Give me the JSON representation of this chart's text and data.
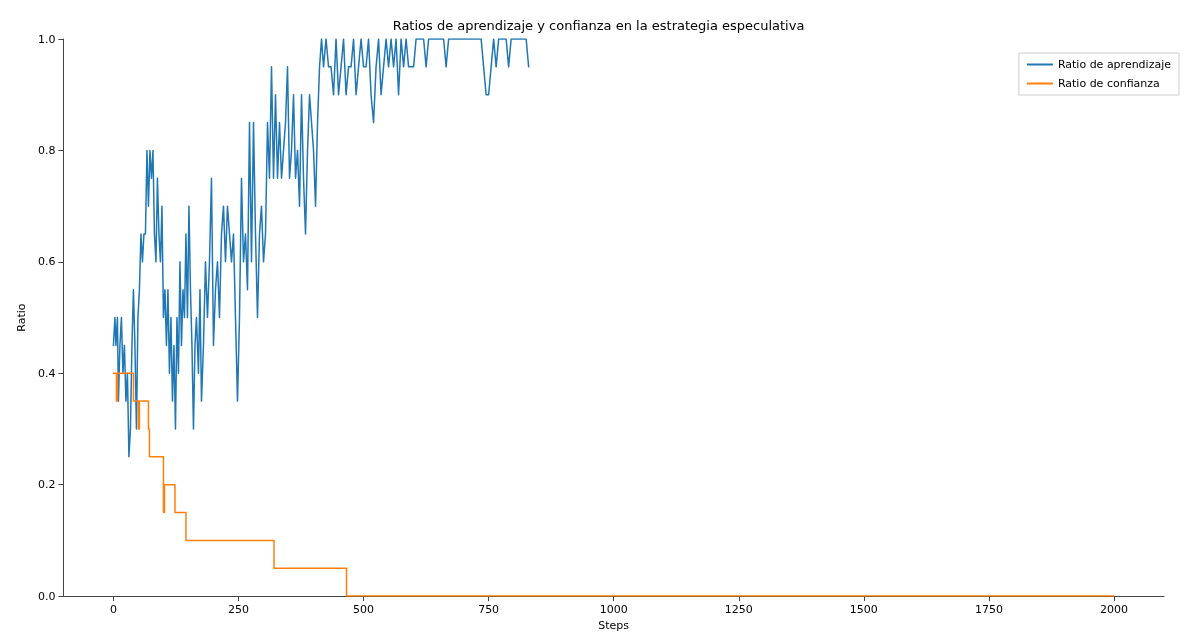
{
  "chart_data": {
    "type": "line",
    "title": "Ratios de aprendizaje y confianza en la estrategia especulativa",
    "xlabel": "Steps",
    "ylabel": "Ratio",
    "xlim": [
      -100,
      2100
    ],
    "xticks": [
      0,
      250,
      500,
      750,
      1000,
      1250,
      1500,
      1750,
      2000
    ],
    "ylim": [
      0,
      1
    ],
    "yticks": [
      {
        "value": 0,
        "label": "0.0"
      },
      {
        "value": 0.2,
        "label": "0.2"
      },
      {
        "value": 0.4,
        "label": "0.4"
      },
      {
        "value": 0.6,
        "label": "0.6"
      },
      {
        "value": 0.8,
        "label": "0.8"
      },
      {
        "value": 1,
        "label": "1.0"
      }
    ],
    "grid": false,
    "legend": "top right",
    "marker": "none",
    "line_style": "solid",
    "series": [
      {
        "name": "Ratio de aprendizaje",
        "color": "#1f77b4",
        "x": [
          0,
          3,
          5,
          8,
          10,
          13,
          16,
          19,
          22,
          25,
          28,
          31,
          34,
          37,
          40,
          43,
          46,
          49,
          52,
          55,
          58,
          61,
          64,
          67,
          70,
          73,
          76,
          79,
          82,
          85,
          88,
          91,
          94,
          97,
          100,
          103,
          106,
          109,
          112,
          115,
          118,
          121,
          124,
          127,
          130,
          133,
          136,
          139,
          142,
          145,
          148,
          151,
          154,
          157,
          160,
          163,
          166,
          170,
          173,
          176,
          180,
          184,
          188,
          192,
          196,
          200,
          204,
          208,
          212,
          216,
          220,
          224,
          228,
          232,
          236,
          240,
          244,
          248,
          252,
          256,
          260,
          264,
          268,
          272,
          276,
          280,
          284,
          288,
          292,
          296,
          300,
          304,
          308,
          312,
          316,
          320,
          324,
          328,
          332,
          336,
          340,
          344,
          348,
          352,
          356,
          360,
          364,
          368,
          372,
          376,
          380,
          384,
          388,
          392,
          396,
          400,
          404,
          408,
          412,
          416,
          420,
          425,
          430,
          435,
          440,
          445,
          450,
          455,
          460,
          465,
          470,
          475,
          480,
          485,
          490,
          495,
          500,
          505,
          510,
          515,
          520,
          525,
          530,
          535,
          540,
          545,
          550,
          555,
          560,
          565,
          570,
          575,
          580,
          585,
          590,
          600,
          605,
          620,
          625,
          630,
          660,
          665,
          670,
          735,
          740,
          745,
          750,
          755,
          760,
          765,
          770,
          785,
          790,
          795,
          825,
          830
        ],
        "values": [
          0.45,
          0.5,
          0.45,
          0.5,
          0.35,
          0.45,
          0.5,
          0.4,
          0.45,
          0.35,
          0.4,
          0.25,
          0.3,
          0.45,
          0.55,
          0.45,
          0.3,
          0.5,
          0.55,
          0.65,
          0.6,
          0.65,
          0.65,
          0.8,
          0.7,
          0.8,
          0.75,
          0.8,
          0.65,
          0.6,
          0.75,
          0.65,
          0.6,
          0.7,
          0.5,
          0.55,
          0.45,
          0.55,
          0.4,
          0.5,
          0.35,
          0.45,
          0.3,
          0.5,
          0.4,
          0.6,
          0.45,
          0.55,
          0.5,
          0.65,
          0.5,
          0.7,
          0.55,
          0.45,
          0.3,
          0.45,
          0.5,
          0.4,
          0.55,
          0.35,
          0.45,
          0.6,
          0.5,
          0.6,
          0.75,
          0.45,
          0.55,
          0.6,
          0.5,
          0.65,
          0.7,
          0.6,
          0.7,
          0.65,
          0.6,
          0.65,
          0.5,
          0.35,
          0.5,
          0.75,
          0.6,
          0.65,
          0.55,
          0.85,
          0.6,
          0.85,
          0.65,
          0.5,
          0.65,
          0.7,
          0.6,
          0.65,
          0.85,
          0.75,
          0.95,
          0.75,
          0.9,
          0.75,
          0.85,
          0.75,
          0.8,
          0.85,
          0.95,
          0.75,
          0.8,
          0.9,
          0.75,
          0.8,
          0.7,
          0.9,
          0.75,
          0.65,
          0.8,
          0.9,
          0.85,
          0.8,
          0.7,
          0.85,
          0.95,
          1,
          0.95,
          1,
          0.95,
          0.95,
          0.9,
          1,
          0.9,
          0.95,
          1,
          0.9,
          0.95,
          0.95,
          1,
          0.9,
          0.95,
          1,
          0.95,
          0.95,
          1,
          0.9,
          0.85,
          0.95,
          1,
          0.9,
          0.95,
          1,
          0.95,
          1,
          0.95,
          1,
          0.9,
          1,
          0.95,
          1,
          0.95,
          0.95,
          1,
          1,
          0.95,
          1,
          1,
          0.95,
          1,
          1,
          0.95,
          0.9,
          0.9,
          0.95,
          1,
          0.95,
          1,
          1,
          0.95,
          1,
          1,
          0.95
        ]
      },
      {
        "name": "Ratio de confianza",
        "color": "#ff7f0e",
        "type": "step",
        "x": [
          0,
          6,
          8,
          40,
          50,
          52,
          70,
          72,
          100,
          102,
          123,
          145,
          321,
          466,
          2000
        ],
        "values": [
          0.4,
          0.35,
          0.4,
          0.35,
          0.3,
          0.35,
          0.3,
          0.25,
          0.15,
          0.2,
          0.15,
          0.1,
          0.05,
          0,
          0
        ]
      }
    ]
  }
}
